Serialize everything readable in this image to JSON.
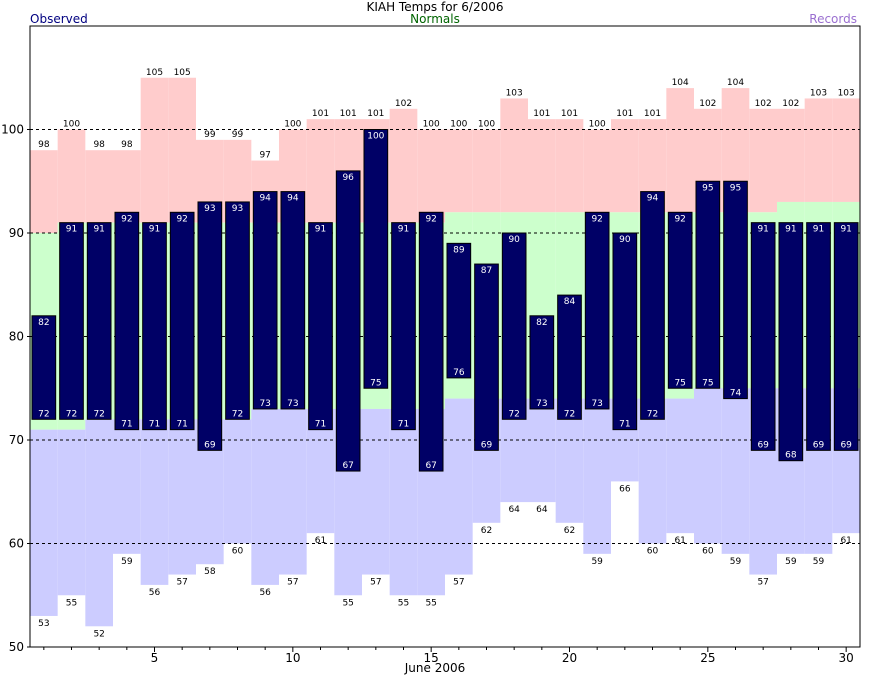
{
  "chart_data": {
    "type": "bar",
    "title": "KIAH Temps for 6/2006",
    "xlabel": "June 2006",
    "ylabel": "",
    "ylim": [
      50,
      110
    ],
    "xlim": [
      0.5,
      30.5
    ],
    "y_ticks": [
      50,
      60,
      70,
      80,
      90,
      100
    ],
    "x_ticks": [
      5,
      10,
      15,
      20,
      25,
      30
    ],
    "grid": "dashed horizontal at 60, 70, 80, 90, 100",
    "legend": {
      "observed": "Observed",
      "normals": "Normals",
      "records": "Records"
    },
    "colors": {
      "observed": "#000066",
      "normals": "#ccffcc",
      "record_high": "#ffcccc",
      "record_low": "#ccccff",
      "observed_label": "#000080",
      "normals_label": "#006400",
      "records_label": "#9a6fd0"
    },
    "days": [
      1,
      2,
      3,
      4,
      5,
      6,
      7,
      8,
      9,
      10,
      11,
      12,
      13,
      14,
      15,
      16,
      17,
      18,
      19,
      20,
      21,
      22,
      23,
      24,
      25,
      26,
      27,
      28,
      29,
      30
    ],
    "observed_high": [
      82,
      91,
      91,
      92,
      91,
      92,
      93,
      93,
      94,
      94,
      91,
      96,
      100,
      91,
      92,
      89,
      87,
      90,
      82,
      84,
      92,
      90,
      94,
      92,
      95,
      95,
      91,
      91,
      91,
      91
    ],
    "observed_low": [
      72,
      72,
      72,
      71,
      71,
      71,
      69,
      72,
      73,
      73,
      71,
      67,
      75,
      71,
      67,
      76,
      69,
      72,
      73,
      72,
      73,
      71,
      72,
      75,
      75,
      74,
      69,
      68,
      69,
      69
    ],
    "normal_high": [
      90,
      91,
      91,
      91,
      91,
      91,
      91,
      91,
      91,
      91,
      91,
      91,
      91,
      91,
      91,
      92,
      92,
      92,
      92,
      92,
      92,
      92,
      92,
      92,
      92,
      92,
      92,
      93,
      93,
      93
    ],
    "normal_low": [
      71,
      71,
      72,
      72,
      72,
      72,
      72,
      72,
      73,
      73,
      73,
      73,
      73,
      73,
      73,
      74,
      74,
      74,
      74,
      74,
      74,
      74,
      74,
      74,
      75,
      75,
      75,
      75,
      75,
      75
    ],
    "record_high": [
      98,
      100,
      98,
      98,
      105,
      105,
      99,
      99,
      97,
      100,
      101,
      101,
      101,
      102,
      100,
      100,
      100,
      103,
      101,
      101,
      100,
      101,
      101,
      104,
      102,
      104,
      102,
      102,
      103,
      103
    ],
    "record_low": [
      53,
      55,
      52,
      59,
      56,
      57,
      58,
      60,
      56,
      57,
      61,
      55,
      57,
      55,
      55,
      57,
      62,
      64,
      64,
      62,
      59,
      66,
      60,
      61,
      60,
      59,
      57,
      59,
      59,
      61
    ]
  }
}
